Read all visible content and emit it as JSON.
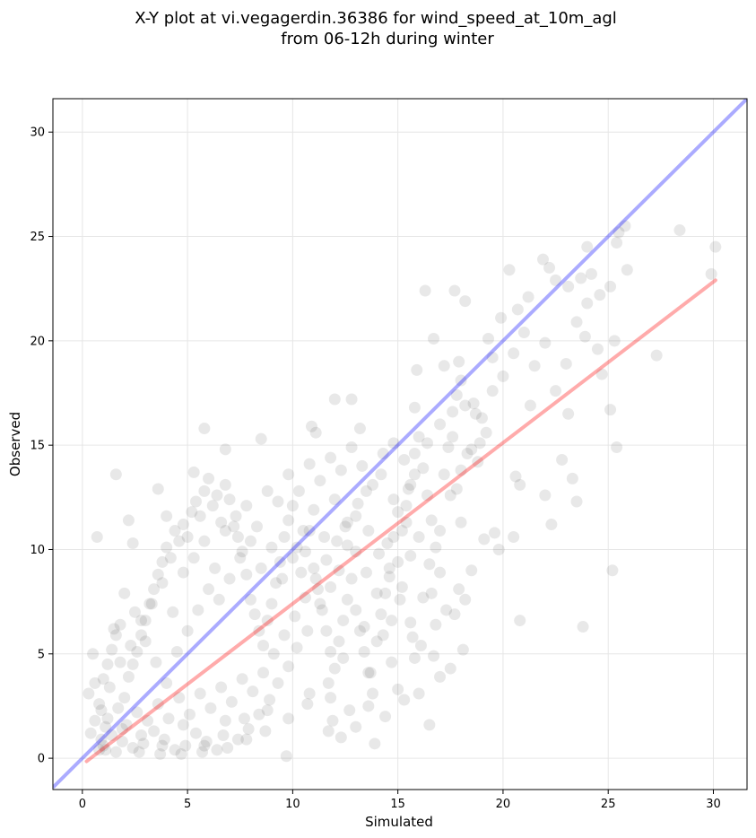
{
  "chart_data": {
    "type": "scatter",
    "title": "X-Y plot at vi.vegagerdin.36386 for wind_speed_at_10m_agl",
    "subtitle": "from 06-12h during winter",
    "xlabel": "Simulated",
    "ylabel": "Observed",
    "xlim": [
      -1.4,
      31.6
    ],
    "ylim": [
      -1.5,
      31.6
    ],
    "xticks": [
      0,
      5,
      10,
      15,
      20,
      25,
      30
    ],
    "yticks": [
      0,
      5,
      10,
      15,
      20,
      25,
      30
    ],
    "grid": true,
    "point_color": "#000000",
    "point_opacity": 0.09,
    "identity_line": {
      "from": [
        -1.4,
        -1.4
      ],
      "to": [
        31.6,
        31.6
      ],
      "color": "#0000ff"
    },
    "fit_line": {
      "from": [
        0.2,
        -0.15
      ],
      "to": [
        30.1,
        22.9
      ],
      "color": "#ff0000"
    },
    "points": [
      [
        0.3,
        3.1
      ],
      [
        0.5,
        5.0
      ],
      [
        0.7,
        10.6
      ],
      [
        0.6,
        3.6
      ],
      [
        0.9,
        0.9
      ],
      [
        1.1,
        1.5
      ],
      [
        1.6,
        13.6
      ],
      [
        2.2,
        11.4
      ],
      [
        2.4,
        10.3
      ],
      [
        3.6,
        12.9
      ],
      [
        4.0,
        11.6
      ],
      [
        5.3,
        13.7
      ],
      [
        5.8,
        15.8
      ],
      [
        6.8,
        14.8
      ],
      [
        8.5,
        15.3
      ],
      [
        10.9,
        15.9
      ],
      [
        11.1,
        15.6
      ],
      [
        12.0,
        17.2
      ],
      [
        12.8,
        17.2
      ],
      [
        13.2,
        15.8
      ],
      [
        15.8,
        16.8
      ],
      [
        15.9,
        18.6
      ],
      [
        16.3,
        22.4
      ],
      [
        16.7,
        20.1
      ],
      [
        16.4,
        15.1
      ],
      [
        17.0,
        16.0
      ],
      [
        17.2,
        18.8
      ],
      [
        17.7,
        22.4
      ],
      [
        18.2,
        21.9
      ],
      [
        17.9,
        19.0
      ],
      [
        18.6,
        17.0
      ],
      [
        19.3,
        20.1
      ],
      [
        19.9,
        21.1
      ],
      [
        19.5,
        19.2
      ],
      [
        20.3,
        23.4
      ],
      [
        20.7,
        21.5
      ],
      [
        21.2,
        22.1
      ],
      [
        21.9,
        23.9
      ],
      [
        22.2,
        23.5
      ],
      [
        22.5,
        22.9
      ],
      [
        23.1,
        22.6
      ],
      [
        23.7,
        23.0
      ],
      [
        24.0,
        24.5
      ],
      [
        24.2,
        23.2
      ],
      [
        24.6,
        22.2
      ],
      [
        25.1,
        22.6
      ],
      [
        25.4,
        24.7
      ],
      [
        25.5,
        25.2
      ],
      [
        25.8,
        25.5
      ],
      [
        25.9,
        23.4
      ],
      [
        28.4,
        25.3
      ],
      [
        29.9,
        23.2
      ],
      [
        30.1,
        24.5
      ],
      [
        27.3,
        19.3
      ],
      [
        25.3,
        20.0
      ],
      [
        25.1,
        16.7
      ],
      [
        25.4,
        14.9
      ],
      [
        25.2,
        9.0
      ],
      [
        24.7,
        18.4
      ],
      [
        23.9,
        20.2
      ],
      [
        23.8,
        6.3
      ],
      [
        23.5,
        12.3
      ],
      [
        23.3,
        13.4
      ],
      [
        23.1,
        16.5
      ],
      [
        22.8,
        14.3
      ],
      [
        22.3,
        11.2
      ],
      [
        22.0,
        12.6
      ],
      [
        21.3,
        16.9
      ],
      [
        20.6,
        13.5
      ],
      [
        20.8,
        13.1
      ],
      [
        20.5,
        10.6
      ],
      [
        20.8,
        6.6
      ],
      [
        19.8,
        10.0
      ],
      [
        19.6,
        10.8
      ],
      [
        19.1,
        10.5
      ],
      [
        18.7,
        16.5
      ],
      [
        18.9,
        15.1
      ],
      [
        18.3,
        14.6
      ],
      [
        17.8,
        12.9
      ],
      [
        18.0,
        11.3
      ],
      [
        18.5,
        9.0
      ],
      [
        17.9,
        8.1
      ],
      [
        18.2,
        7.6
      ],
      [
        18.1,
        5.2
      ],
      [
        17.3,
        7.1
      ],
      [
        17.0,
        3.9
      ],
      [
        17.5,
        4.3
      ],
      [
        16.5,
        1.6
      ],
      [
        16.8,
        6.4
      ],
      [
        16.2,
        7.7
      ],
      [
        16.0,
        3.1
      ],
      [
        15.8,
        4.8
      ],
      [
        15.3,
        2.8
      ],
      [
        15.0,
        3.3
      ],
      [
        14.4,
        2.0
      ],
      [
        13.9,
        0.7
      ],
      [
        13.6,
        2.5
      ],
      [
        13.0,
        1.5
      ],
      [
        12.3,
        1.0
      ],
      [
        11.9,
        1.8
      ],
      [
        11.7,
        3.6
      ],
      [
        12.4,
        4.8
      ],
      [
        13.4,
        6.3
      ],
      [
        14.3,
        5.9
      ],
      [
        14.7,
        6.6
      ],
      [
        15.2,
        8.2
      ],
      [
        15.6,
        9.7
      ],
      [
        15.4,
        11.3
      ],
      [
        14.8,
        12.4
      ],
      [
        14.2,
        13.6
      ],
      [
        13.5,
        12.8
      ],
      [
        13.0,
        11.6
      ],
      [
        12.6,
        10.2
      ],
      [
        12.2,
        9.0
      ],
      [
        11.8,
        8.2
      ],
      [
        11.3,
        7.4
      ],
      [
        10.7,
        6.1
      ],
      [
        10.2,
        5.3
      ],
      [
        9.8,
        4.4
      ],
      [
        9.3,
        3.6
      ],
      [
        8.9,
        2.8
      ],
      [
        8.4,
        2.1
      ],
      [
        7.9,
        1.4
      ],
      [
        7.4,
        0.9
      ],
      [
        6.9,
        0.5
      ],
      [
        6.4,
        0.4
      ],
      [
        5.9,
        0.8
      ],
      [
        5.4,
        1.2
      ],
      [
        4.9,
        0.6
      ],
      [
        4.4,
        0.4
      ],
      [
        3.9,
        0.9
      ],
      [
        3.4,
        1.3
      ],
      [
        2.9,
        0.7
      ],
      [
        2.4,
        0.5
      ],
      [
        1.9,
        0.8
      ],
      [
        1.4,
        1.1
      ],
      [
        1.0,
        0.6
      ],
      [
        0.8,
        0.4
      ],
      [
        1.2,
        1.9
      ],
      [
        1.7,
        2.4
      ],
      [
        2.1,
        1.6
      ],
      [
        2.6,
        2.2
      ],
      [
        3.1,
        1.8
      ],
      [
        3.6,
        2.6
      ],
      [
        4.1,
        1.9
      ],
      [
        4.6,
        2.9
      ],
      [
        5.1,
        2.1
      ],
      [
        5.6,
        3.1
      ],
      [
        6.1,
        2.4
      ],
      [
        6.6,
        3.4
      ],
      [
        7.1,
        2.7
      ],
      [
        7.6,
        3.8
      ],
      [
        8.1,
        3.2
      ],
      [
        8.6,
        4.1
      ],
      [
        9.1,
        5.0
      ],
      [
        9.6,
        5.9
      ],
      [
        10.1,
        6.8
      ],
      [
        10.6,
        7.7
      ],
      [
        11.1,
        8.6
      ],
      [
        11.6,
        9.5
      ],
      [
        12.1,
        10.4
      ],
      [
        12.6,
        11.3
      ],
      [
        13.1,
        12.2
      ],
      [
        13.6,
        10.9
      ],
      [
        14.1,
        9.8
      ],
      [
        14.6,
        8.7
      ],
      [
        15.1,
        7.6
      ],
      [
        15.6,
        6.5
      ],
      [
        16.1,
        5.4
      ],
      [
        16.6,
        7.9
      ],
      [
        1.3,
        3.4
      ],
      [
        1.8,
        4.6
      ],
      [
        2.3,
        5.4
      ],
      [
        2.8,
        6.6
      ],
      [
        3.3,
        7.4
      ],
      [
        3.8,
        8.4
      ],
      [
        4.3,
        7.0
      ],
      [
        4.8,
        8.9
      ],
      [
        5.3,
        9.6
      ],
      [
        5.8,
        10.4
      ],
      [
        6.3,
        9.1
      ],
      [
        6.8,
        10.9
      ],
      [
        7.3,
        11.6
      ],
      [
        7.8,
        12.1
      ],
      [
        8.3,
        11.1
      ],
      [
        8.8,
        12.8
      ],
      [
        9.3,
        12.3
      ],
      [
        9.8,
        13.6
      ],
      [
        10.3,
        12.8
      ],
      [
        10.8,
        14.1
      ],
      [
        11.3,
        13.3
      ],
      [
        11.8,
        14.4
      ],
      [
        12.3,
        13.8
      ],
      [
        12.8,
        14.9
      ],
      [
        13.3,
        14.0
      ],
      [
        13.8,
        13.1
      ],
      [
        14.3,
        14.6
      ],
      [
        14.8,
        15.1
      ],
      [
        15.3,
        14.3
      ],
      [
        15.8,
        13.6
      ],
      [
        1.5,
        6.2
      ],
      [
        2.0,
        7.9
      ],
      [
        2.5,
        7.0
      ],
      [
        3.0,
        5.6
      ],
      [
        3.5,
        4.6
      ],
      [
        4.0,
        3.6
      ],
      [
        4.5,
        5.1
      ],
      [
        5.0,
        6.1
      ],
      [
        5.5,
        7.1
      ],
      [
        6.0,
        8.1
      ],
      [
        6.5,
        7.6
      ],
      [
        7.0,
        8.6
      ],
      [
        7.5,
        9.6
      ],
      [
        8.0,
        10.4
      ],
      [
        8.5,
        9.1
      ],
      [
        9.0,
        10.1
      ],
      [
        9.5,
        8.6
      ],
      [
        10.0,
        9.6
      ],
      [
        10.5,
        10.9
      ],
      [
        11.0,
        11.9
      ],
      [
        11.5,
        10.6
      ],
      [
        12.0,
        12.4
      ],
      [
        12.5,
        11.1
      ],
      [
        13.0,
        9.9
      ],
      [
        13.5,
        8.9
      ],
      [
        14.0,
        7.9
      ],
      [
        14.5,
        10.3
      ],
      [
        15.0,
        11.8
      ],
      [
        15.5,
        12.9
      ],
      [
        16.0,
        10.6
      ],
      [
        16.5,
        9.3
      ],
      [
        17.0,
        10.9
      ],
      [
        17.5,
        12.6
      ],
      [
        18.0,
        13.8
      ],
      [
        18.5,
        14.8
      ],
      [
        19.0,
        16.3
      ],
      [
        19.5,
        17.6
      ],
      [
        20.0,
        18.3
      ],
      [
        20.5,
        19.4
      ],
      [
        21.0,
        20.4
      ],
      [
        21.5,
        18.8
      ],
      [
        22.0,
        19.9
      ],
      [
        22.5,
        17.6
      ],
      [
        23.0,
        18.9
      ],
      [
        23.5,
        20.9
      ],
      [
        24.0,
        21.8
      ],
      [
        24.5,
        19.6
      ],
      [
        19.2,
        15.6
      ],
      [
        18.8,
        14.2
      ],
      [
        17.6,
        15.4
      ],
      [
        0.9,
        2.3
      ],
      [
        1.6,
        0.3
      ],
      [
        2.7,
        0.3
      ],
      [
        3.7,
        0.2
      ],
      [
        4.7,
        0.2
      ],
      [
        5.7,
        0.3
      ],
      [
        6.7,
        1.1
      ],
      [
        7.7,
        1.9
      ],
      [
        8.7,
        1.3
      ],
      [
        9.7,
        0.1
      ],
      [
        10.7,
        2.6
      ],
      [
        11.7,
        1.3
      ],
      [
        12.7,
        2.3
      ],
      [
        13.7,
        4.1
      ],
      [
        14.7,
        4.6
      ],
      [
        15.7,
        5.8
      ],
      [
        16.7,
        4.9
      ],
      [
        17.7,
        6.9
      ],
      [
        1.1,
        0.4
      ],
      [
        1.9,
        1.4
      ],
      [
        2.8,
        1.1
      ],
      [
        3.8,
        0.6
      ],
      [
        4.8,
        1.6
      ],
      [
        5.8,
        0.6
      ],
      [
        6.8,
        1.8
      ],
      [
        7.8,
        0.9
      ],
      [
        8.8,
        2.3
      ],
      [
        9.8,
        1.9
      ],
      [
        10.8,
        3.1
      ],
      [
        11.8,
        2.9
      ],
      [
        0.4,
        1.2
      ],
      [
        0.6,
        1.8
      ],
      [
        0.8,
        2.6
      ],
      [
        1.0,
        3.8
      ],
      [
        1.2,
        4.5
      ],
      [
        1.4,
        5.2
      ],
      [
        1.6,
        5.9
      ],
      [
        1.8,
        6.4
      ],
      [
        2.0,
        2.9
      ],
      [
        2.2,
        3.9
      ],
      [
        2.4,
        4.5
      ],
      [
        2.6,
        5.1
      ],
      [
        2.8,
        5.9
      ],
      [
        3.0,
        6.6
      ],
      [
        3.2,
        7.4
      ],
      [
        3.4,
        8.1
      ],
      [
        3.6,
        8.8
      ],
      [
        3.8,
        9.4
      ],
      [
        4.0,
        10.1
      ],
      [
        4.2,
        9.6
      ],
      [
        4.4,
        10.9
      ],
      [
        4.6,
        10.4
      ],
      [
        4.8,
        11.2
      ],
      [
        5.0,
        10.6
      ],
      [
        5.2,
        11.8
      ],
      [
        5.4,
        12.3
      ],
      [
        5.6,
        11.6
      ],
      [
        5.8,
        12.8
      ],
      [
        6.0,
        13.4
      ],
      [
        6.2,
        12.1
      ],
      [
        6.4,
        12.6
      ],
      [
        6.6,
        11.3
      ],
      [
        6.8,
        13.1
      ],
      [
        7.0,
        12.4
      ],
      [
        7.2,
        11.1
      ],
      [
        7.4,
        10.6
      ],
      [
        7.6,
        9.9
      ],
      [
        7.8,
        8.8
      ],
      [
        8.0,
        7.6
      ],
      [
        8.2,
        6.9
      ],
      [
        8.4,
        6.1
      ],
      [
        8.6,
        5.4
      ],
      [
        8.8,
        6.6
      ],
      [
        9.0,
        7.4
      ],
      [
        9.2,
        8.4
      ],
      [
        9.4,
        9.4
      ],
      [
        9.6,
        10.6
      ],
      [
        9.8,
        11.4
      ],
      [
        10.0,
        12.1
      ],
      [
        10.2,
        10.1
      ],
      [
        10.4,
        8.9
      ],
      [
        10.6,
        9.9
      ],
      [
        10.8,
        10.9
      ],
      [
        11.0,
        9.1
      ],
      [
        11.2,
        8.1
      ],
      [
        11.4,
        7.1
      ],
      [
        11.6,
        6.1
      ],
      [
        11.8,
        5.1
      ],
      [
        12.0,
        4.3
      ],
      [
        12.2,
        5.6
      ],
      [
        12.4,
        6.6
      ],
      [
        12.6,
        7.6
      ],
      [
        12.8,
        8.6
      ],
      [
        13.0,
        7.1
      ],
      [
        13.2,
        6.1
      ],
      [
        13.4,
        5.1
      ],
      [
        13.6,
        4.1
      ],
      [
        13.8,
        3.1
      ],
      [
        14.0,
        5.6
      ],
      [
        14.2,
        6.9
      ],
      [
        14.4,
        7.9
      ],
      [
        14.6,
        9.1
      ],
      [
        14.8,
        10.6
      ],
      [
        15.0,
        9.4
      ],
      [
        15.2,
        10.9
      ],
      [
        15.4,
        12.1
      ],
      [
        15.6,
        13.1
      ],
      [
        15.8,
        14.6
      ],
      [
        16.0,
        15.4
      ],
      [
        16.2,
        13.9
      ],
      [
        16.4,
        12.6
      ],
      [
        16.6,
        11.4
      ],
      [
        16.8,
        10.1
      ],
      [
        17.0,
        8.9
      ],
      [
        17.2,
        13.6
      ],
      [
        17.4,
        14.9
      ],
      [
        17.6,
        16.6
      ],
      [
        17.8,
        17.4
      ],
      [
        18.0,
        18.1
      ],
      [
        18.2,
        16.9
      ]
    ]
  }
}
